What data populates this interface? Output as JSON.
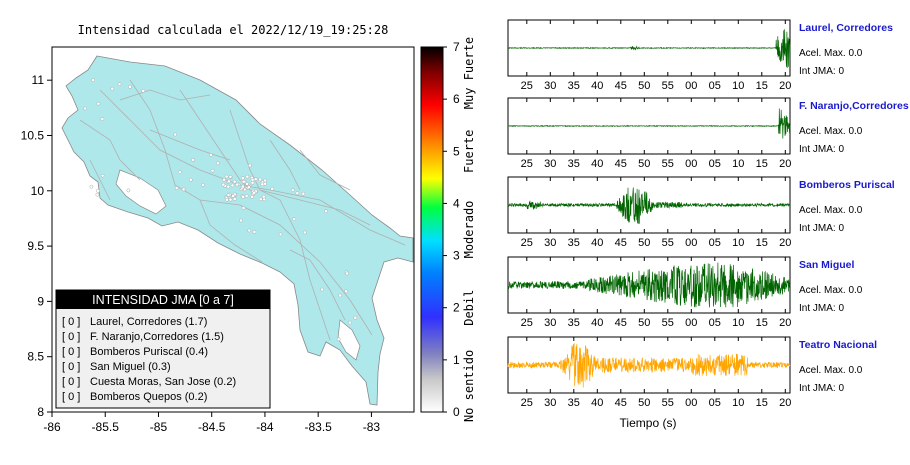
{
  "map": {
    "title": "Intensidad calculada el 2022/12/19_19:25:28",
    "x_ticks": [
      "-86",
      "-85.5",
      "-85",
      "-84.5",
      "-84",
      "-83.5",
      "-83"
    ],
    "y_ticks": [
      "11",
      "10.5",
      "10",
      "9.5",
      "9",
      "8.5",
      "8"
    ],
    "xlim": [
      -86,
      -82.6
    ],
    "ylim": [
      8,
      11.3
    ]
  },
  "colorbar": {
    "ticks": [
      "0",
      "1",
      "2",
      "3",
      "4",
      "5",
      "6",
      "7"
    ],
    "levels": [
      "No sentido",
      "Debil",
      "Moderado",
      "Fuerte",
      "Muy Fuerte"
    ],
    "range": [
      0,
      7
    ],
    "stops": [
      "#ffffff",
      "#8080c0",
      "#3030ff",
      "#00c8ff",
      "#00ff80",
      "#ffff00",
      "#ff8000",
      "#ff0000",
      "#000000"
    ]
  },
  "legend": {
    "title": "INTENSIDAD JMA [0 a 7]",
    "entries": [
      {
        "prefix": "[ 0 ]",
        "text": "Laurel, Corredores (1.7)"
      },
      {
        "prefix": "[ 0 ]",
        "text": "F. Naranjo,Corredores (1.5)"
      },
      {
        "prefix": "[ 0 ]",
        "text": "Bomberos Puriscal (0.4)"
      },
      {
        "prefix": "[ 0 ]",
        "text": "San Miguel (0.3)"
      },
      {
        "prefix": "[ 0 ]",
        "text": "Cuesta Moras, San Jose (0.2)"
      },
      {
        "prefix": "[ 0 ]",
        "text": "Bomberos Quepos (0.2)"
      }
    ]
  },
  "waveforms": {
    "xlabel": "Tiempo (s)",
    "panels": [
      {
        "station": "Laurel, Corredores",
        "accel": "Acel. Max. 0.0",
        "jma": "Int JMA: 0",
        "color": "#006400",
        "ticks": [
          "25",
          "30",
          "35",
          "40",
          "45",
          "50",
          "55",
          "00",
          "05",
          "10",
          "15",
          "20"
        ]
      },
      {
        "station": "F. Naranjo,Corredores",
        "accel": "Acel. Max. 0.0",
        "jma": "Int JMA: 0",
        "color": "#006400",
        "ticks": [
          "25",
          "30",
          "35",
          "40",
          "45",
          "50",
          "55",
          "00",
          "05",
          "10",
          "15",
          "20"
        ]
      },
      {
        "station": "Bomberos Puriscal",
        "accel": "Acel. Max. 0.0",
        "jma": "Int JMA: 0",
        "color": "#006400",
        "ticks": [
          "25",
          "30",
          "35",
          "40",
          "45",
          "50",
          "55",
          "00",
          "05",
          "10",
          "15",
          "20"
        ]
      },
      {
        "station": "San Miguel",
        "accel": "Acel. Max. 0.0",
        "jma": "Int JMA: 0",
        "color": "#006400",
        "ticks": [
          "25",
          "30",
          "35",
          "40",
          "45",
          "50",
          "55",
          "00",
          "05",
          "10",
          "15",
          "20"
        ]
      },
      {
        "station": "Teatro Nacional",
        "accel": "Acel. Max. 0.0",
        "jma": "Int JMA: 0",
        "color": "#ffa500",
        "ticks": [
          "25",
          "30",
          "35",
          "40",
          "45",
          "50",
          "55",
          "00",
          "05",
          "10",
          "15",
          "20"
        ]
      }
    ]
  },
  "chart_data": [
    {
      "type": "heatmap",
      "title": "Intensidad calculada el 2022/12/19_19:25:28",
      "xlim": [
        -86,
        -82.6
      ],
      "ylim": [
        8,
        11.3
      ],
      "legend": "bottom-left",
      "stations": [
        {
          "name": "Laurel, Corredores",
          "intensity": 1.7
        },
        {
          "name": "F. Naranjo,Corredores",
          "intensity": 1.5
        },
        {
          "name": "Bomberos Puriscal",
          "intensity": 0.4
        },
        {
          "name": "San Miguel",
          "intensity": 0.3
        },
        {
          "name": "Cuesta Moras, San Jose",
          "intensity": 0.2
        },
        {
          "name": "Bomberos Quepos",
          "intensity": 0.2
        }
      ]
    },
    {
      "type": "line",
      "xlabel": "Tiempo (s)",
      "series": [
        {
          "name": "Laurel, Corredores",
          "onset": 20.5,
          "amp": 1.0
        },
        {
          "name": "F. Naranjo,Corredores",
          "onset": 19.5,
          "amp": 1.0
        },
        {
          "name": "Bomberos Puriscal",
          "onset": 45,
          "amp": 0.9
        },
        {
          "name": "San Miguel",
          "onset": 40,
          "amp": 0.95
        },
        {
          "name": "Teatro Nacional",
          "onset": 33,
          "amp": 0.95
        }
      ]
    }
  ]
}
